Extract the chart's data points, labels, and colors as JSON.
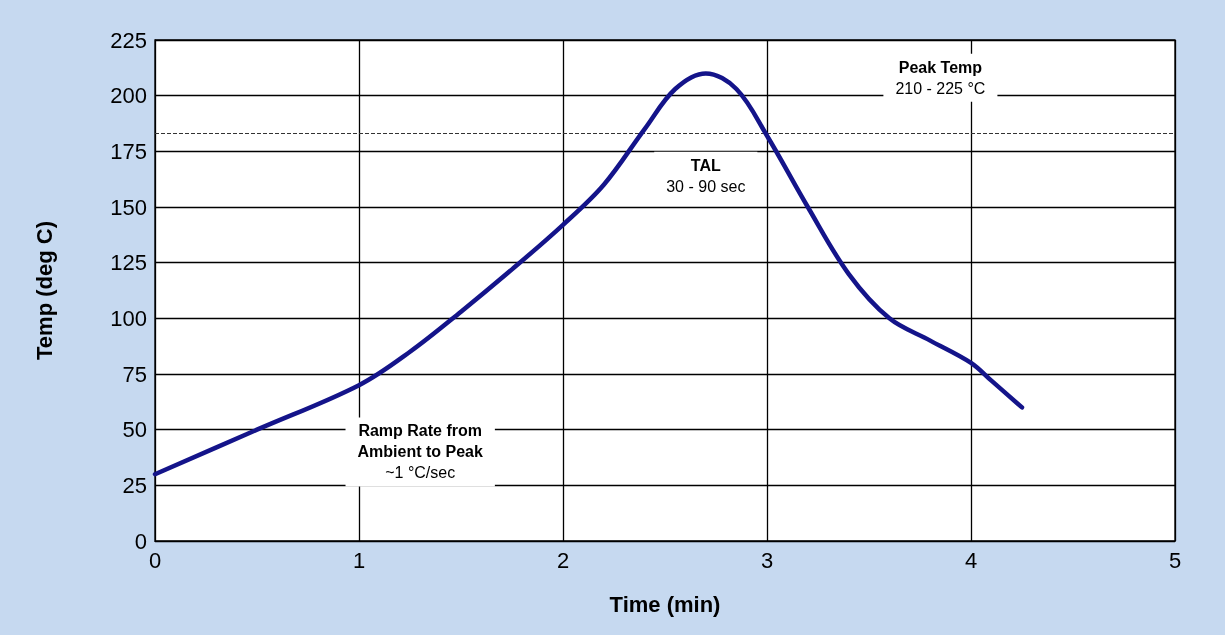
{
  "chart_data": {
    "type": "line",
    "xlabel": "Time (min)",
    "ylabel": "Temp (deg C)",
    "x": [
      0,
      0.5,
      1,
      1.25,
      1.5,
      1.75,
      2,
      2.2,
      2.4,
      2.55,
      2.7,
      2.85,
      3,
      3.2,
      3.4,
      3.6,
      3.8,
      4,
      4.1,
      4.25
    ],
    "series": [
      {
        "color": "#14148a",
        "values": [
          30,
          50,
          70,
          85,
          103,
          122,
          142,
          160,
          185,
          203,
          210,
          203,
          182,
          150,
          120,
          100,
          90,
          80,
          72,
          60
        ]
      }
    ],
    "xlim": [
      0,
      5
    ],
    "xticks": [
      0,
      1,
      2,
      3,
      4,
      5
    ],
    "ylim": [
      0,
      225
    ],
    "yticks": [
      0,
      25,
      50,
      75,
      100,
      125,
      150,
      175,
      200,
      225
    ],
    "grid": true,
    "marker": "none",
    "line_style": "solid",
    "ref_lines": [
      {
        "axis": "y",
        "value": 183,
        "line_style": "dashed",
        "color": "#333333"
      }
    ],
    "annotations": [
      "Peak Temp\n210 - 225 °C",
      "TAL\n30 - 90 sec",
      "Ramp Rate from\nAmbient to Peak\n~1 °C/sec"
    ]
  }
}
